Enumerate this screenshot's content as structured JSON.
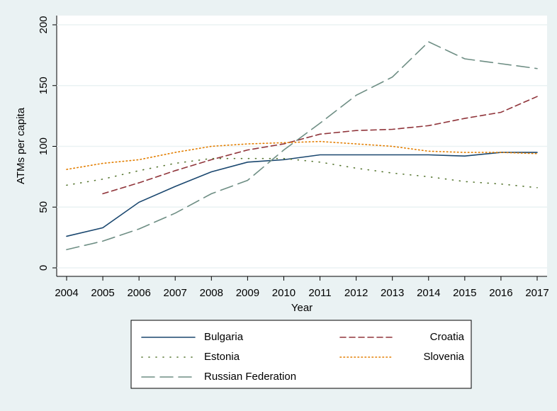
{
  "chart_data": {
    "type": "line",
    "y_label": "ATMs per capita",
    "x_label": "Year",
    "x": [
      2004,
      2005,
      2006,
      2007,
      2008,
      2009,
      2010,
      2011,
      2012,
      2013,
      2014,
      2015,
      2016,
      2017
    ],
    "xlim": [
      2004,
      2017
    ],
    "xticks": [
      2004,
      2005,
      2006,
      2007,
      2008,
      2009,
      2010,
      2011,
      2012,
      2013,
      2014,
      2015,
      2016,
      2017
    ],
    "ylim": [
      0,
      200
    ],
    "yticks": [
      0,
      50,
      100,
      150,
      200
    ],
    "grid": true,
    "series": [
      {
        "name": "Bulgaria",
        "color": "#1a476f",
        "dash": "none",
        "values": [
          26,
          33,
          54,
          67,
          79,
          87,
          89,
          93,
          93,
          93,
          93,
          92,
          95,
          95
        ]
      },
      {
        "name": "Croatia",
        "color": "#90353b",
        "dash": "8,5",
        "values": [
          null,
          61,
          70,
          80,
          89,
          97,
          102,
          110,
          113,
          114,
          117,
          123,
          128,
          141
        ]
      },
      {
        "name": "Estonia",
        "color": "#55752f",
        "dash": "1,9",
        "values": [
          68,
          73,
          80,
          86,
          90,
          90,
          90,
          87,
          82,
          78,
          75,
          71,
          69,
          66
        ]
      },
      {
        "name": "Slovenia",
        "color": "#e37e00",
        "dash": "1.5,3.5",
        "values": [
          81,
          86,
          89,
          95,
          100,
          102,
          103,
          104,
          102,
          100,
          96,
          95,
          95,
          94
        ]
      },
      {
        "name": "Russian Federation",
        "color": "#6e8e84",
        "dash": "18,8",
        "values": [
          15,
          22,
          32,
          45,
          61,
          72,
          97,
          119,
          142,
          157,
          186,
          172,
          168,
          164
        ]
      }
    ]
  }
}
